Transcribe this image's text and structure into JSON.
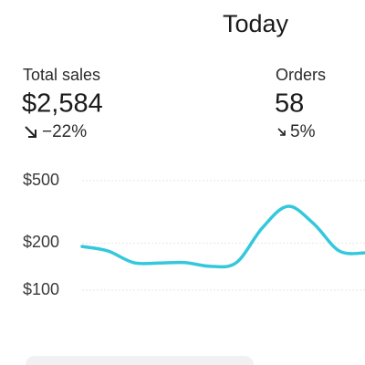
{
  "header": {
    "title": "Today"
  },
  "metrics": [
    {
      "label": "Total sales",
      "value": "$2,584",
      "change": "−22%"
    },
    {
      "label": "Orders",
      "value": "58",
      "change": "5%"
    }
  ],
  "chart_data": {
    "type": "line",
    "categories": [
      null,
      null,
      null,
      null,
      null,
      null,
      null,
      null,
      null,
      null,
      null,
      null
    ],
    "series": [
      {
        "color": "#33c8dc",
        "values": [
          190,
          178,
          150,
          149,
          150,
          142,
          150,
          249,
          343,
          266,
          178,
          173
        ]
      }
    ],
    "log_scale": true,
    "ylim": [
      100,
      500
    ],
    "yticks": [
      {
        "value": 500,
        "label": "$500"
      },
      {
        "value": 200,
        "label": "$200"
      },
      {
        "value": 100,
        "label": "$100"
      }
    ],
    "grid": true
  }
}
